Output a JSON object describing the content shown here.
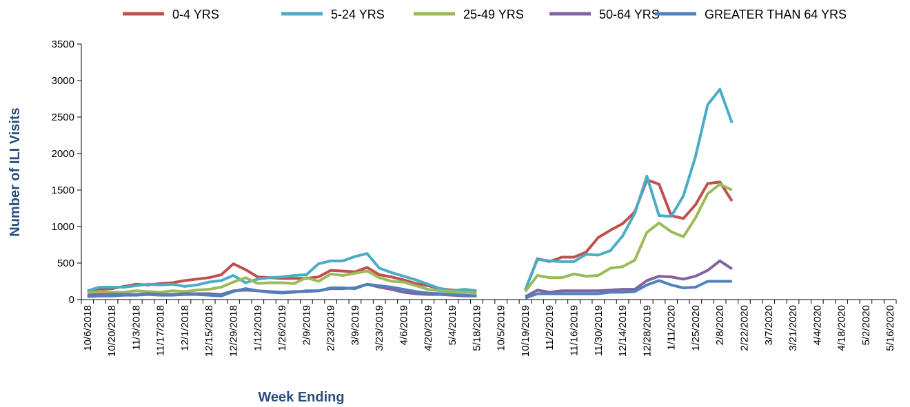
{
  "chart_data": {
    "type": "line",
    "x_label": "Week Ending",
    "y_label": "Number of ILI Visits",
    "categories": [
      "10/6/2018",
      null,
      "10/20/2018",
      null,
      "11/3/2018",
      null,
      "11/17/2018",
      null,
      "12/1/2018",
      null,
      "12/15/2018",
      null,
      "12/29/2018",
      null,
      "1/12/2019",
      null,
      "1/26/2019",
      null,
      "2/9/2019",
      null,
      "2/23/2019",
      null,
      "3/9/2019",
      null,
      "3/23/2019",
      null,
      "4/6/2019",
      null,
      "4/20/2019",
      null,
      "5/4/2019",
      null,
      "5/18/2019",
      null,
      "10/5/2019",
      null,
      "10/19/2019",
      null,
      "11/2/2019",
      null,
      "11/16/2019",
      null,
      "11/30/2019",
      null,
      "12/14/2019",
      null,
      "12/28/2019",
      null,
      "1/11/2020",
      null,
      "1/25/2020",
      null,
      "2/8/2020",
      null,
      "2/22/2020",
      null,
      "3/7/2020",
      null,
      "3/21/2020",
      null,
      "4/4/2020",
      null,
      "4/18/2020",
      null,
      "5/2/2020",
      null,
      "5/16/2020"
    ],
    "series": [
      {
        "name": "0-4 YRS",
        "color": "#c0504d",
        "values": [
          110,
          140,
          150,
          180,
          210,
          200,
          220,
          230,
          260,
          280,
          300,
          340,
          490,
          410,
          310,
          300,
          290,
          290,
          290,
          310,
          400,
          390,
          380,
          440,
          340,
          310,
          270,
          220,
          190,
          150,
          130,
          120,
          110,
          null,
          null,
          null,
          130,
          560,
          520,
          580,
          580,
          650,
          850,
          950,
          1040,
          1200,
          1640,
          1580,
          1150,
          1110,
          1300,
          1590,
          1610,
          1350,
          null,
          null,
          null,
          null,
          null,
          null,
          null,
          null,
          null,
          null,
          null,
          null,
          null
        ]
      },
      {
        "name": "5-24 YRS",
        "color": "#4bacc6",
        "values": [
          120,
          170,
          170,
          170,
          190,
          210,
          200,
          210,
          180,
          200,
          240,
          260,
          330,
          230,
          280,
          300,
          310,
          330,
          340,
          490,
          530,
          530,
          590,
          630,
          430,
          370,
          320,
          270,
          210,
          150,
          120,
          140,
          120,
          null,
          null,
          null,
          130,
          550,
          530,
          520,
          520,
          620,
          610,
          670,
          870,
          1180,
          1690,
          1150,
          1140,
          1420,
          1960,
          2670,
          2880,
          2420,
          null,
          null,
          null,
          null,
          null,
          null,
          null,
          null,
          null,
          null,
          null,
          null,
          null
        ]
      },
      {
        "name": "25-49 YRS",
        "color": "#9bbb59",
        "values": [
          90,
          110,
          100,
          100,
          120,
          110,
          100,
          120,
          110,
          130,
          140,
          170,
          240,
          300,
          220,
          230,
          230,
          220,
          300,
          250,
          350,
          330,
          360,
          390,
          300,
          250,
          240,
          190,
          140,
          120,
          110,
          100,
          90,
          null,
          null,
          null,
          110,
          330,
          300,
          300,
          350,
          320,
          330,
          430,
          450,
          540,
          920,
          1050,
          930,
          860,
          1120,
          1450,
          1580,
          1500,
          null,
          null,
          null,
          null,
          null,
          null,
          null,
          null,
          null,
          null,
          null,
          null,
          null
        ]
      },
      {
        "name": "50-64 YRS",
        "color": "#8064a2",
        "values": [
          60,
          70,
          70,
          70,
          70,
          80,
          70,
          70,
          80,
          80,
          80,
          70,
          120,
          130,
          120,
          110,
          100,
          110,
          110,
          120,
          150,
          150,
          160,
          210,
          170,
          140,
          100,
          80,
          70,
          70,
          60,
          50,
          50,
          null,
          null,
          null,
          40,
          130,
          100,
          120,
          120,
          120,
          120,
          130,
          140,
          140,
          260,
          320,
          310,
          280,
          320,
          400,
          530,
          420,
          null,
          null,
          null,
          null,
          null,
          null,
          null,
          null,
          null,
          null,
          null,
          null,
          null
        ]
      },
      {
        "name": "GREATER THAN 64 YRS",
        "color": "#4f81bd",
        "values": [
          40,
          50,
          50,
          60,
          60,
          70,
          60,
          60,
          70,
          70,
          60,
          50,
          110,
          150,
          120,
          100,
          90,
          100,
          120,
          120,
          160,
          160,
          150,
          210,
          190,
          170,
          140,
          110,
          90,
          80,
          70,
          60,
          50,
          null,
          null,
          null,
          20,
          80,
          80,
          80,
          80,
          80,
          80,
          100,
          100,
          110,
          200,
          260,
          200,
          160,
          170,
          250,
          250,
          250,
          null,
          null,
          null,
          null,
          null,
          null,
          null,
          null,
          null,
          null,
          null,
          null,
          null
        ]
      }
    ],
    "ylim": [
      0,
      3500
    ],
    "yticks": [
      0,
      500,
      1000,
      1500,
      2000,
      2500,
      3000,
      3500
    ],
    "grid": false,
    "legend": "top"
  }
}
